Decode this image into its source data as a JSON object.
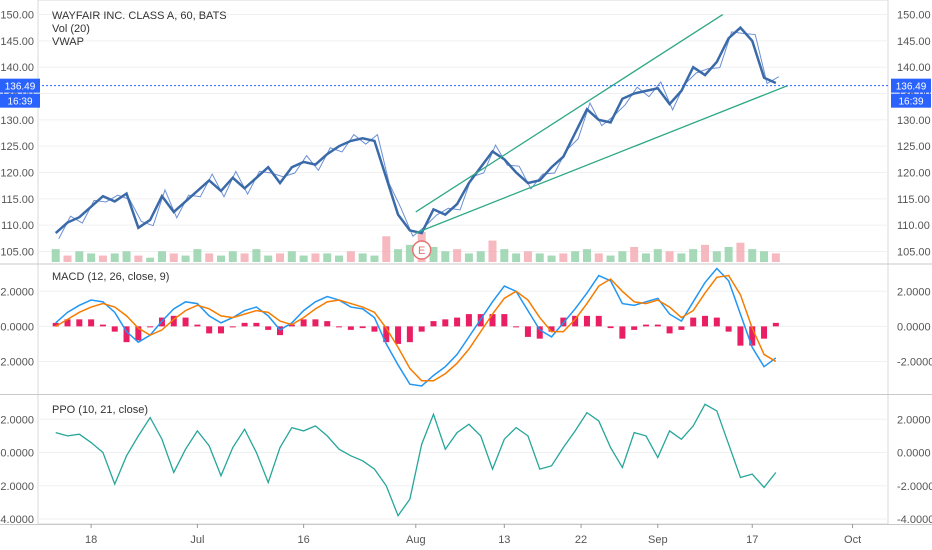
{
  "header": {
    "symbol_line": "WAYFAIR INC. CLASS A, 60, BATS",
    "vol_label": "Vol (20)",
    "vwap_label": "VWAP"
  },
  "macd_panel": {
    "title": "MACD (12, 26, close, 9)"
  },
  "ppo_panel": {
    "title": "PPO (10, 21, close)"
  },
  "price_marker": {
    "value": "136.49",
    "countdown": "16:39"
  },
  "earnings_marker": {
    "label": "E"
  },
  "colors": {
    "price_line": "#3a6aa8",
    "price_thin": "#6b8fd6",
    "trendline": "#2ea886",
    "macd_line": "#2196f3",
    "signal_line": "#f57c00",
    "histogram": "#e91e63",
    "ppo_line": "#26a69a",
    "current_price": "#2962ff",
    "vol_up": "#8fd0a6",
    "vol_down": "#f4a7b0",
    "earnings": "#e57373"
  },
  "chart_data": [
    {
      "type": "line",
      "panel": "price",
      "title": "WAYFAIR INC. CLASS A, 60, BATS",
      "x_ticks": [
        "18",
        "Jul",
        "16",
        "Aug",
        "13",
        "22",
        "Sep",
        "17",
        "Oct"
      ],
      "x_tick_positions": [
        3,
        12,
        21,
        30.5,
        38,
        44.5,
        51,
        59,
        67.5
      ],
      "ylim": [
        103,
        152
      ],
      "y_ticks": [
        "105.00",
        "110.00",
        "115.00",
        "120.00",
        "125.00",
        "130.00",
        "135.00",
        "140.00",
        "145.00",
        "150.00"
      ],
      "series": [
        {
          "role": "vwap",
          "x": [
            0,
            1,
            2,
            3,
            4,
            5,
            6,
            7,
            8,
            9,
            10,
            11,
            12,
            13,
            14,
            15,
            16,
            17,
            18,
            19,
            20,
            21,
            22,
            23,
            24,
            25,
            26,
            27,
            28,
            29,
            30,
            31,
            32,
            33,
            34,
            35,
            36,
            37,
            38,
            39,
            40,
            41,
            42,
            43,
            44,
            45,
            46,
            47,
            48,
            49,
            50,
            51,
            52,
            53,
            54,
            55,
            56,
            57,
            58,
            59,
            60,
            61
          ],
          "values": [
            108.5,
            110.5,
            111.5,
            113.5,
            115.5,
            114.5,
            116,
            109.5,
            111,
            115.5,
            112.5,
            114.5,
            116.5,
            118.5,
            116.5,
            119,
            117,
            119,
            121,
            118,
            121,
            122,
            121.5,
            123.5,
            125,
            126,
            126.5,
            126,
            119,
            112,
            109,
            108.5,
            113,
            112,
            114,
            118,
            121,
            124,
            122.5,
            120,
            118,
            118.5,
            121,
            123,
            127.5,
            132,
            130,
            129.5,
            134,
            135,
            135.5,
            136,
            133,
            135.5,
            140,
            138.5,
            141,
            145.5,
            147.5,
            145,
            138,
            137
          ]
        }
      ],
      "trendlines": [
        {
          "from": [
            30.5,
            112.5
          ],
          "to": [
            56.5,
            150
          ]
        },
        {
          "from": [
            30.5,
            108.5
          ],
          "to": [
            62,
            136.5
          ]
        }
      ],
      "current_price": 136.49,
      "earnings_event_x": 31,
      "volume": {
        "label": "Vol (20)",
        "values": [
          6,
          3,
          5,
          4,
          3,
          4,
          5,
          3,
          2,
          5,
          4,
          3,
          6,
          4,
          3,
          5,
          4,
          6,
          3,
          4,
          5,
          3,
          4,
          4,
          3,
          5,
          4,
          3,
          12,
          6,
          8,
          14,
          7,
          5,
          6,
          4,
          5,
          10,
          6,
          4,
          5,
          4,
          3,
          4,
          5,
          6,
          4,
          3,
          5,
          7,
          4,
          6,
          5,
          4,
          6,
          8,
          5,
          7,
          9,
          6,
          5,
          4
        ]
      }
    },
    {
      "type": "line",
      "panel": "macd",
      "title": "MACD (12, 26, close, 9)",
      "ylim": [
        -3.8,
        3.5
      ],
      "y_ticks": [
        "-2.0000",
        "0.0000",
        "2.0000"
      ],
      "series": [
        {
          "name": "MACD",
          "x": [
            0,
            1,
            2,
            3,
            4,
            5,
            6,
            7,
            8,
            9,
            10,
            11,
            12,
            13,
            14,
            15,
            16,
            17,
            18,
            19,
            20,
            21,
            22,
            23,
            24,
            25,
            26,
            27,
            28,
            29,
            30,
            31,
            32,
            33,
            34,
            35,
            36,
            37,
            38,
            39,
            40,
            41,
            42,
            43,
            44,
            45,
            46,
            47,
            48,
            49,
            50,
            51,
            52,
            53,
            54,
            55,
            56,
            57,
            58,
            59,
            60,
            61
          ],
          "values": [
            0.2,
            0.8,
            1.2,
            1.5,
            1.4,
            0.8,
            -0.3,
            -0.9,
            -0.5,
            0.3,
            1.0,
            1.4,
            1.3,
            0.6,
            0.2,
            0.5,
            0.9,
            1.1,
            0.6,
            -0.2,
            0.2,
            0.9,
            1.4,
            1.7,
            1.5,
            1.1,
            1.0,
            0.5,
            -1.0,
            -2.2,
            -3.3,
            -3.4,
            -2.8,
            -2.3,
            -1.6,
            -0.6,
            0.4,
            1.4,
            2.3,
            2.0,
            0.9,
            -0.2,
            -0.6,
            0.2,
            1.0,
            1.9,
            2.9,
            2.6,
            1.3,
            1.2,
            1.4,
            1.6,
            0.7,
            0.3,
            1.4,
            2.5,
            3.3,
            2.6,
            0.7,
            -1.2,
            -2.3,
            -1.8
          ]
        },
        {
          "name": "Signal",
          "x": [
            0,
            1,
            2,
            3,
            4,
            5,
            6,
            7,
            8,
            9,
            10,
            11,
            12,
            13,
            14,
            15,
            16,
            17,
            18,
            19,
            20,
            21,
            22,
            23,
            24,
            25,
            26,
            27,
            28,
            29,
            30,
            31,
            32,
            33,
            34,
            35,
            36,
            37,
            38,
            39,
            40,
            41,
            42,
            43,
            44,
            45,
            46,
            47,
            48,
            49,
            50,
            51,
            52,
            53,
            54,
            55,
            56,
            57,
            58,
            59,
            60,
            61
          ],
          "values": [
            0.0,
            0.4,
            0.8,
            1.1,
            1.3,
            1.1,
            0.6,
            -0.1,
            -0.5,
            -0.2,
            0.4,
            0.9,
            1.2,
            1.0,
            0.6,
            0.5,
            0.7,
            0.9,
            0.8,
            0.3,
            0.1,
            0.5,
            1.0,
            1.4,
            1.5,
            1.3,
            1.1,
            0.8,
            -0.1,
            -1.2,
            -2.4,
            -3.1,
            -3.1,
            -2.7,
            -2.1,
            -1.3,
            -0.3,
            0.7,
            1.6,
            2.0,
            1.5,
            0.5,
            -0.3,
            -0.3,
            0.4,
            1.3,
            2.3,
            2.7,
            2.0,
            1.4,
            1.3,
            1.5,
            1.1,
            0.5,
            0.9,
            1.9,
            2.8,
            2.9,
            1.8,
            -0.1,
            -1.6,
            -2.0
          ]
        }
      ],
      "histogram": [
        0.2,
        0.4,
        0.4,
        0.4,
        0.1,
        -0.3,
        -0.9,
        -0.8,
        0.0,
        0.5,
        0.6,
        0.5,
        0.1,
        -0.4,
        -0.4,
        0.0,
        0.2,
        0.2,
        -0.2,
        -0.5,
        0.1,
        0.4,
        0.4,
        0.3,
        0.0,
        -0.2,
        -0.1,
        -0.3,
        -0.9,
        -1.0,
        -0.9,
        -0.3,
        0.3,
        0.4,
        0.5,
        0.7,
        0.7,
        0.7,
        0.7,
        0.0,
        -0.6,
        -0.7,
        -0.3,
        0.5,
        0.6,
        0.6,
        0.6,
        -0.1,
        -0.7,
        -0.2,
        0.1,
        0.1,
        -0.4,
        -0.2,
        0.5,
        0.6,
        0.5,
        -0.3,
        -1.1,
        -1.1,
        -0.7,
        0.2
      ]
    },
    {
      "type": "line",
      "panel": "ppo",
      "title": "PPO (10, 21, close)",
      "ylim": [
        -4.3,
        3.4
      ],
      "y_ticks": [
        "-4.0000",
        "-2.0000",
        "0.0000",
        "2.0000"
      ],
      "series": [
        {
          "name": "PPO",
          "x": [
            0,
            1,
            2,
            3,
            4,
            5,
            6,
            7,
            8,
            9,
            10,
            11,
            12,
            13,
            14,
            15,
            16,
            17,
            18,
            19,
            20,
            21,
            22,
            23,
            24,
            25,
            26,
            27,
            28,
            29,
            30,
            31,
            32,
            33,
            34,
            35,
            36,
            37,
            38,
            39,
            40,
            41,
            42,
            43,
            44,
            45,
            46,
            47,
            48,
            49,
            50,
            51,
            52,
            53,
            54,
            55,
            56,
            57,
            58,
            59,
            60,
            61
          ],
          "values": [
            1.2,
            1.0,
            1.1,
            0.6,
            0.0,
            -1.9,
            -0.2,
            1.0,
            2.1,
            0.8,
            -1.2,
            0.2,
            1.3,
            0.4,
            -1.4,
            0.3,
            1.4,
            0.0,
            -1.8,
            0.3,
            1.5,
            1.3,
            1.6,
            1.0,
            0.2,
            -0.2,
            -0.5,
            -1.0,
            -2.0,
            -3.8,
            -2.8,
            0.5,
            2.3,
            0.2,
            1.2,
            1.7,
            1.0,
            -1.0,
            0.8,
            1.5,
            1.0,
            -1.0,
            -0.8,
            0.3,
            1.3,
            2.4,
            1.9,
            0.3,
            -0.9,
            1.2,
            1.0,
            -0.3,
            1.3,
            0.8,
            1.6,
            2.9,
            2.5,
            0.5,
            -1.5,
            -1.3,
            -2.1,
            -1.2
          ]
        }
      ]
    }
  ]
}
